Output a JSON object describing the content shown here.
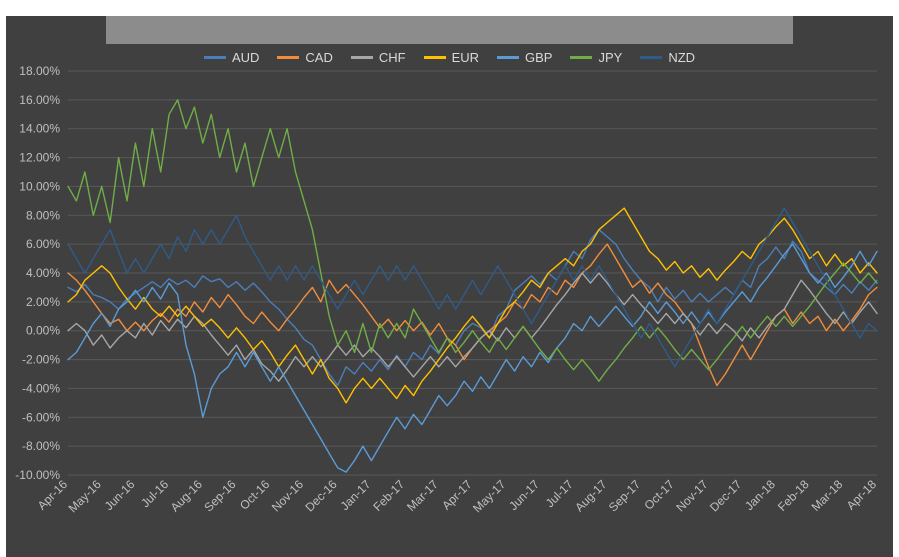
{
  "chart": {
    "type": "line",
    "background_color": "#404040",
    "outer_background": "#ffffff",
    "grid_color": "#595959",
    "axis_text_color": "#bfbfbf",
    "legend_text_color": "#d9d9d9",
    "title_bar_color": "#8c8c8c",
    "line_width": 1.4,
    "font_family": "Segoe UI, Arial, sans-serif",
    "font_size_axis": 12,
    "font_size_legend": 13,
    "y_min": -10,
    "y_max": 18,
    "y_tick_step": 2,
    "y_suffix": ".00%",
    "x_labels": [
      "Apr-16",
      "May-16",
      "Jun-16",
      "Jul-16",
      "Aug-16",
      "Sep-16",
      "Oct-16",
      "Nov-16",
      "Dec-16",
      "Jan-17",
      "Feb-17",
      "Mar-17",
      "Apr-17",
      "May-17",
      "Jun-17",
      "Jul-17",
      "Aug-17",
      "Sep-17",
      "Oct-17",
      "Nov-17",
      "Dec-17",
      "Jan-18",
      "Feb-18",
      "Mar-18",
      "Apr-18"
    ],
    "x_dense_count": 97,
    "legend": [
      {
        "label": "AUD",
        "color": "#4a7ebb"
      },
      {
        "label": "CAD",
        "color": "#f08d3c"
      },
      {
        "label": "CHF",
        "color": "#a6a6a6"
      },
      {
        "label": "EUR",
        "color": "#ffc000"
      },
      {
        "label": "GBP",
        "color": "#5b9bd5"
      },
      {
        "label": "JPY",
        "color": "#70ad47"
      },
      {
        "label": "NZD",
        "color": "#2e5c8a"
      }
    ],
    "series": {
      "AUD": [
        3.0,
        2.7,
        3.2,
        2.5,
        2.3,
        2.0,
        1.5,
        2.2,
        2.6,
        3.0,
        3.4,
        3.0,
        3.6,
        3.2,
        3.5,
        3.0,
        3.8,
        3.4,
        3.6,
        3.0,
        3.4,
        2.8,
        3.3,
        2.7,
        2.0,
        1.5,
        0.8,
        0.2,
        -0.6,
        -1.0,
        -2.0,
        -3.0,
        -3.8,
        -2.5,
        -3.0,
        -2.2,
        -2.8,
        -2.0,
        -2.7,
        -1.7,
        -2.5,
        -1.5,
        -2.0,
        -1.0,
        -1.6,
        -0.5,
        -1.0,
        0.0,
        0.5,
        0.2,
        -0.5,
        1.0,
        1.5,
        2.8,
        3.3,
        3.8,
        3.2,
        4.0,
        3.5,
        4.5,
        5.5,
        5.0,
        6.3,
        7.0,
        6.5,
        6.0,
        5.0,
        4.2,
        3.5,
        3.0,
        2.0,
        3.0,
        2.2,
        2.8,
        2.0,
        2.6,
        2.0,
        2.5,
        3.0,
        2.5,
        3.5,
        3.0,
        4.5,
        5.0,
        5.8,
        5.0,
        6.2,
        5.5,
        4.0,
        3.5,
        3.0,
        2.5,
        3.2,
        2.6,
        3.4,
        2.8,
        3.5
      ],
      "CAD": [
        4.0,
        3.5,
        2.8,
        2.0,
        1.2,
        0.5,
        0.8,
        0.0,
        0.6,
        0.0,
        0.7,
        1.2,
        0.6,
        1.5,
        1.0,
        2.0,
        1.3,
        2.3,
        1.6,
        2.5,
        1.8,
        1.0,
        0.5,
        1.3,
        0.6,
        0.0,
        0.8,
        1.5,
        2.3,
        3.0,
        2.0,
        3.5,
        2.6,
        3.2,
        2.5,
        1.8,
        1.0,
        0.2,
        0.8,
        0.0,
        0.7,
        0.0,
        0.6,
        -0.3,
        0.5,
        -0.5,
        -1.0,
        -2.0,
        -1.2,
        -0.5,
        0.0,
        0.5,
        1.0,
        2.0,
        1.5,
        2.5,
        2.0,
        3.0,
        2.5,
        3.5,
        3.0,
        4.0,
        4.5,
        5.3,
        6.0,
        5.0,
        4.0,
        3.0,
        3.5,
        2.6,
        3.3,
        2.5,
        2.0,
        1.2,
        0.5,
        -1.0,
        -2.5,
        -3.8,
        -3.0,
        -2.0,
        -1.0,
        -2.0,
        -1.0,
        0.0,
        1.0,
        1.5,
        0.5,
        1.3,
        0.5,
        1.0,
        0.0,
        0.8,
        0.0,
        0.7,
        1.5,
        2.5,
        3.0
      ],
      "CHF": [
        0.0,
        0.5,
        0.0,
        -1.0,
        -0.3,
        -1.2,
        -0.5,
        0.0,
        -0.5,
        0.5,
        -0.3,
        0.7,
        0.0,
        0.8,
        0.2,
        1.0,
        0.5,
        -0.3,
        -1.0,
        -1.7,
        -1.0,
        -2.0,
        -1.3,
        -2.3,
        -2.8,
        -3.5,
        -2.7,
        -1.8,
        -2.5,
        -1.8,
        -2.5,
        -1.8,
        -1.0,
        -1.7,
        -1.0,
        -1.8,
        -1.2,
        -1.8,
        -2.5,
        -1.8,
        -2.5,
        -3.2,
        -2.5,
        -1.8,
        -2.5,
        -1.8,
        -2.5,
        -1.8,
        -1.2,
        -0.5,
        0.0,
        -0.7,
        0.2,
        -0.5,
        0.3,
        -0.5,
        0.2,
        1.0,
        1.8,
        2.5,
        3.3,
        4.0,
        3.3,
        4.0,
        3.3,
        2.5,
        1.8,
        2.5,
        1.8,
        1.2,
        0.5,
        1.2,
        0.5,
        1.2,
        0.5,
        -0.3,
        0.5,
        -0.2,
        0.5,
        0.0,
        -0.7,
        0.2,
        -0.5,
        0.3,
        1.0,
        1.5,
        2.5,
        3.5,
        2.8,
        2.0,
        1.2,
        0.5,
        1.3,
        0.5,
        1.3,
        2.0,
        1.2
      ],
      "EUR": [
        2.0,
        2.5,
        3.5,
        4.0,
        4.5,
        4.0,
        3.0,
        2.2,
        1.5,
        2.3,
        1.5,
        1.0,
        1.7,
        1.0,
        1.7,
        1.0,
        0.3,
        0.8,
        0.2,
        -0.5,
        0.2,
        -0.5,
        -1.3,
        -0.7,
        -1.5,
        -2.5,
        -1.7,
        -1.0,
        -2.0,
        -3.0,
        -2.0,
        -3.3,
        -4.0,
        -5.0,
        -4.0,
        -3.3,
        -4.0,
        -3.3,
        -4.0,
        -4.7,
        -3.8,
        -4.5,
        -3.5,
        -2.8,
        -2.0,
        -1.2,
        -0.5,
        0.3,
        1.0,
        0.3,
        -0.5,
        0.5,
        1.5,
        2.0,
        2.7,
        3.5,
        3.0,
        4.0,
        4.5,
        5.0,
        4.5,
        5.5,
        6.0,
        7.0,
        7.5,
        8.0,
        8.5,
        7.5,
        6.5,
        5.5,
        5.0,
        4.2,
        4.8,
        4.0,
        4.5,
        3.7,
        4.3,
        3.5,
        4.2,
        4.8,
        5.5,
        5.0,
        6.0,
        6.5,
        7.2,
        7.8,
        7.0,
        6.0,
        5.0,
        5.5,
        4.5,
        5.3,
        4.5,
        5.0,
        4.0,
        4.7,
        4.0
      ],
      "GBP": [
        -2.0,
        -1.5,
        -0.5,
        0.5,
        1.2,
        0.3,
        1.5,
        2.0,
        2.8,
        2.0,
        3.0,
        2.2,
        3.3,
        2.5,
        -1.0,
        -3.0,
        -6.0,
        -4.0,
        -3.0,
        -2.5,
        -1.5,
        -2.5,
        -1.5,
        -2.5,
        -3.5,
        -2.5,
        -3.5,
        -4.5,
        -5.5,
        -6.5,
        -7.5,
        -8.5,
        -9.5,
        -9.8,
        -9.0,
        -8.0,
        -9.0,
        -8.0,
        -7.0,
        -6.0,
        -6.8,
        -5.8,
        -6.5,
        -5.5,
        -4.5,
        -5.2,
        -4.5,
        -3.5,
        -4.2,
        -3.2,
        -4.0,
        -3.0,
        -2.0,
        -2.8,
        -1.8,
        -2.5,
        -1.5,
        -2.2,
        -1.2,
        -0.5,
        0.5,
        0.0,
        1.0,
        0.3,
        1.0,
        1.7,
        1.0,
        0.3,
        1.0,
        2.0,
        1.2,
        2.0,
        1.3,
        0.5,
        1.3,
        0.5,
        1.3,
        0.5,
        1.3,
        2.0,
        2.7,
        2.0,
        3.0,
        3.7,
        4.5,
        5.3,
        6.0,
        5.0,
        4.0,
        3.3,
        4.0,
        3.0,
        3.7,
        4.5,
        5.5,
        4.5,
        5.5
      ],
      "JPY": [
        10.0,
        9.0,
        11.0,
        8.0,
        10.0,
        7.5,
        12.0,
        9.0,
        13.0,
        10.0,
        14.0,
        11.0,
        15.0,
        16.0,
        14.0,
        15.5,
        13.0,
        15.0,
        12.0,
        14.0,
        11.0,
        13.0,
        10.0,
        12.0,
        14.0,
        12.0,
        14.0,
        11.0,
        9.0,
        7.0,
        4.0,
        1.0,
        -1.0,
        0.0,
        -1.5,
        0.5,
        -1.5,
        0.5,
        -0.5,
        0.5,
        -0.5,
        1.5,
        0.5,
        -0.5,
        -1.5,
        -0.5,
        -1.5,
        -0.8,
        0.0,
        -0.8,
        -1.5,
        -0.5,
        -1.3,
        -0.5,
        0.3,
        -0.5,
        -1.3,
        -2.0,
        -1.2,
        -2.0,
        -2.7,
        -2.0,
        -2.7,
        -3.5,
        -2.7,
        -2.0,
        -1.2,
        -0.5,
        0.3,
        -0.5,
        0.2,
        -0.5,
        -1.3,
        -2.0,
        -1.3,
        -2.0,
        -2.7,
        -2.0,
        -1.2,
        -0.5,
        0.3,
        -0.5,
        0.3,
        1.0,
        0.3,
        1.0,
        0.3,
        1.0,
        1.7,
        2.5,
        3.3,
        4.0,
        4.7,
        4.0,
        3.3,
        4.0,
        3.3
      ],
      "NZD": [
        6.0,
        5.0,
        4.0,
        5.0,
        6.0,
        7.0,
        5.5,
        4.0,
        5.0,
        4.0,
        5.0,
        6.0,
        5.0,
        6.5,
        5.5,
        7.0,
        6.0,
        7.0,
        6.0,
        7.0,
        8.0,
        6.5,
        5.5,
        4.5,
        3.5,
        4.5,
        3.5,
        4.5,
        3.5,
        4.5,
        3.5,
        2.5,
        1.5,
        2.5,
        3.5,
        2.5,
        3.5,
        4.5,
        3.5,
        4.5,
        3.5,
        4.5,
        3.5,
        2.5,
        1.5,
        2.5,
        1.5,
        2.5,
        3.5,
        2.5,
        3.5,
        4.5,
        3.5,
        2.5,
        1.5,
        0.5,
        1.5,
        2.5,
        3.5,
        4.5,
        3.5,
        4.5,
        3.5,
        4.5,
        3.5,
        2.5,
        1.5,
        0.5,
        -0.5,
        0.5,
        -0.5,
        -1.5,
        -2.5,
        -1.5,
        -0.5,
        0.5,
        1.5,
        0.5,
        1.5,
        2.5,
        3.5,
        4.5,
        5.5,
        6.5,
        7.5,
        8.5,
        7.5,
        6.5,
        5.5,
        4.5,
        3.5,
        2.5,
        1.5,
        0.5,
        -0.5,
        0.5,
        0.0
      ]
    }
  }
}
